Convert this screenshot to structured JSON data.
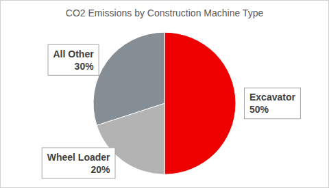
{
  "chart_data": {
    "type": "pie",
    "title": "CO2 Emissions by Construction Machine Type",
    "categories": [
      "Excavator",
      "Wheel Loader",
      "All Other"
    ],
    "values": [
      50,
      20,
      30
    ],
    "value_labels": [
      "50%",
      "20%",
      "30%"
    ],
    "colors": [
      "#ee0000",
      "#b3b3b3",
      "#858d95"
    ],
    "data_labels": true,
    "legend": false
  }
}
